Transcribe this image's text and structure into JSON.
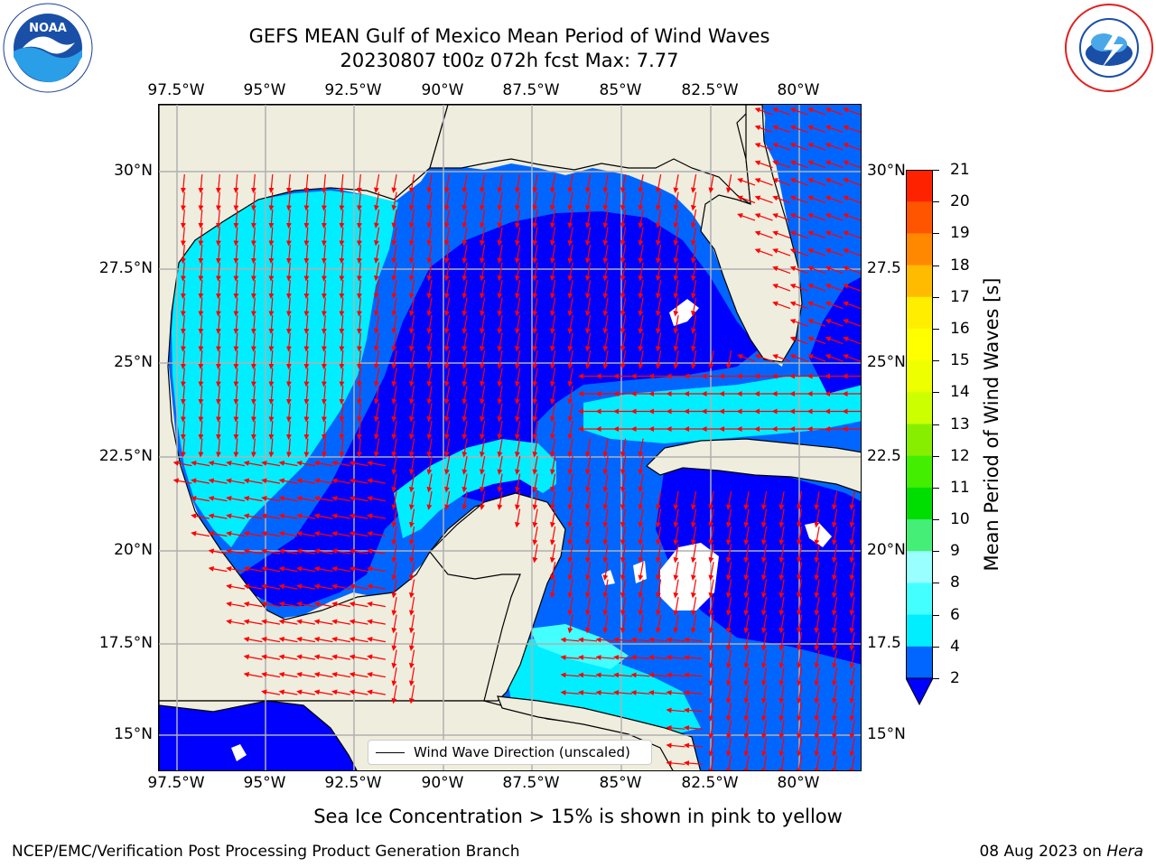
{
  "title_line1": "GEFS MEAN Gulf of Mexico Mean Period of Wind Waves",
  "title_line2": "20230807 t00z 072h fcst   Max: 7.77",
  "lon_ticks": [
    "97.5°W",
    "95°W",
    "92.5°W",
    "90°W",
    "87.5°W",
    "85°W",
    "82.5°W",
    "80°W"
  ],
  "lat_ticks_left": [
    "30°N",
    "27.5°N",
    "25°N",
    "22.5°N",
    "20°N",
    "17.5°N",
    "15°N"
  ],
  "lat_ticks_right": [
    "30°N",
    "27.5",
    "25°N",
    "22.5",
    "20°N",
    "17.5",
    "15°N"
  ],
  "legend_label": "Wind Wave Direction (unscaled)",
  "colorbar": {
    "label": "Mean Period of Wind Waves [s]",
    "ticks": [
      "2",
      "4",
      "6",
      "8",
      "9",
      "10",
      "11",
      "12",
      "13",
      "14",
      "15",
      "16",
      "17",
      "18",
      "19",
      "20",
      "21"
    ],
    "colors": [
      "#0066ff",
      "#00eeff",
      "#44ffff",
      "#99ffff",
      "#44ee77",
      "#00dd00",
      "#44ee00",
      "#88ee00",
      "#ccff00",
      "#eeff00",
      "#ffff00",
      "#ffee00",
      "#ffbb00",
      "#ff8800",
      "#ff5500",
      "#ff2200"
    ],
    "under_color": "#0000ff"
  },
  "footnote": "Sea Ice Concentration > 15% is shown in pink to yellow",
  "credit": "NCEP/EMC/Verification Post Processing Product Generation Branch",
  "date_text": "08 Aug 2023 on ",
  "date_host": "Hera",
  "colors": {
    "land": "#efedde",
    "grid": "#b0b0b0",
    "arrow": "#ff0000",
    "band_0_2": "#0000ff",
    "band_2_4": "#0066ff",
    "band_4_6": "#00eeff",
    "band_6_8": "#44ffff"
  },
  "logos": {
    "left": "noaa-logo",
    "right": "nws-logo"
  }
}
